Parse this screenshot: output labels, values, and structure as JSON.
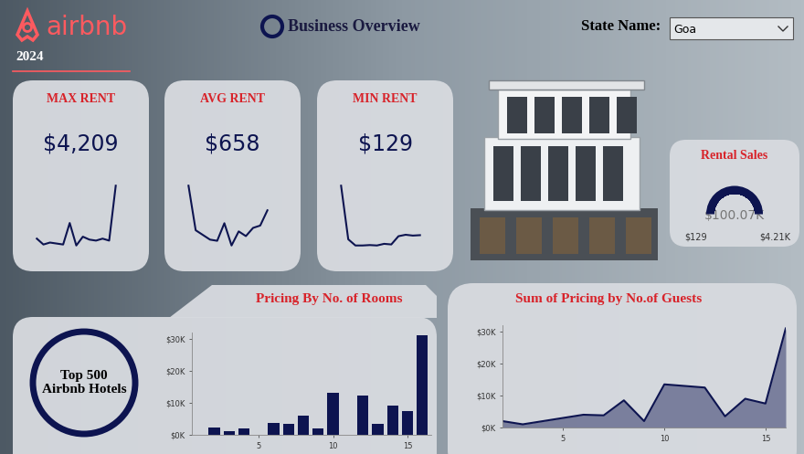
{
  "header": {
    "brand": "airbnb",
    "year": "2024",
    "title": "Business Overview",
    "filter_label": "State Name:",
    "filter_value": "Goa"
  },
  "kpis": [
    {
      "title": "MAX RENT",
      "value": 4209,
      "value_label": "$4,209",
      "sparkline": [
        1500,
        1200,
        1300,
        1250,
        1200,
        2300,
        1150,
        1600,
        1450,
        1400,
        1500,
        1400,
        4209
      ]
    },
    {
      "title": "AVG RENT",
      "value": 658,
      "value_label": "$658",
      "sparkline": [
        760,
        570,
        550,
        530,
        525,
        600,
        505,
        565,
        545,
        580,
        590,
        655
      ]
    },
    {
      "title": "MIN RENT",
      "value": 129,
      "value_label": "$129",
      "sparkline": [
        420,
        160,
        130,
        130,
        132,
        130,
        138,
        135,
        175,
        182,
        178,
        180
      ]
    }
  ],
  "gauge": {
    "title": "Rental Sales",
    "value": 100070,
    "value_label": "$100.07K",
    "min": 129,
    "min_label": "$129",
    "max": 4210,
    "max_label": "$4.21K",
    "color": "#0d1450"
  },
  "badge": "Top 500\nAirbnb Hotels",
  "chart_data": [
    {
      "type": "bar",
      "title": "Pricing By No. of Rooms",
      "x": [
        2,
        3,
        4,
        6,
        7,
        8,
        9,
        10,
        12,
        13,
        14,
        15,
        16
      ],
      "values": [
        2300,
        1200,
        2000,
        3700,
        3400,
        6000,
        2000,
        13100,
        12300,
        3400,
        9100,
        7400,
        31100
      ],
      "color": "#0d1450",
      "xlim": [
        0.5,
        16.6
      ],
      "xticks": [
        5,
        10,
        15
      ],
      "ylim": [
        0,
        32000
      ],
      "yticks": [
        {
          "value": 0,
          "label": "$0K"
        },
        {
          "value": 10000,
          "label": "$10K"
        },
        {
          "value": 20000,
          "label": "$20K"
        },
        {
          "value": 30000,
          "label": "$30K"
        }
      ]
    },
    {
      "type": "area",
      "title": "Sum of Pricing by No.of Guests",
      "x": [
        2,
        3,
        4,
        5,
        6,
        7,
        8,
        9,
        10,
        11,
        12,
        13,
        14,
        15,
        16
      ],
      "values": [
        2000,
        1000,
        2000,
        3000,
        4000,
        3800,
        8500,
        2000,
        13500,
        13000,
        12500,
        3500,
        9000,
        7500,
        31000
      ],
      "color": "#0d1450",
      "xlim": [
        2,
        16
      ],
      "xticks": [
        5,
        10,
        15
      ],
      "ylim": [
        0,
        32000
      ],
      "yticks": [
        {
          "value": 0,
          "label": "$0K"
        },
        {
          "value": 10000,
          "label": "$10K"
        },
        {
          "value": 20000,
          "label": "$20K"
        },
        {
          "value": 30000,
          "label": "$30K"
        }
      ]
    }
  ]
}
